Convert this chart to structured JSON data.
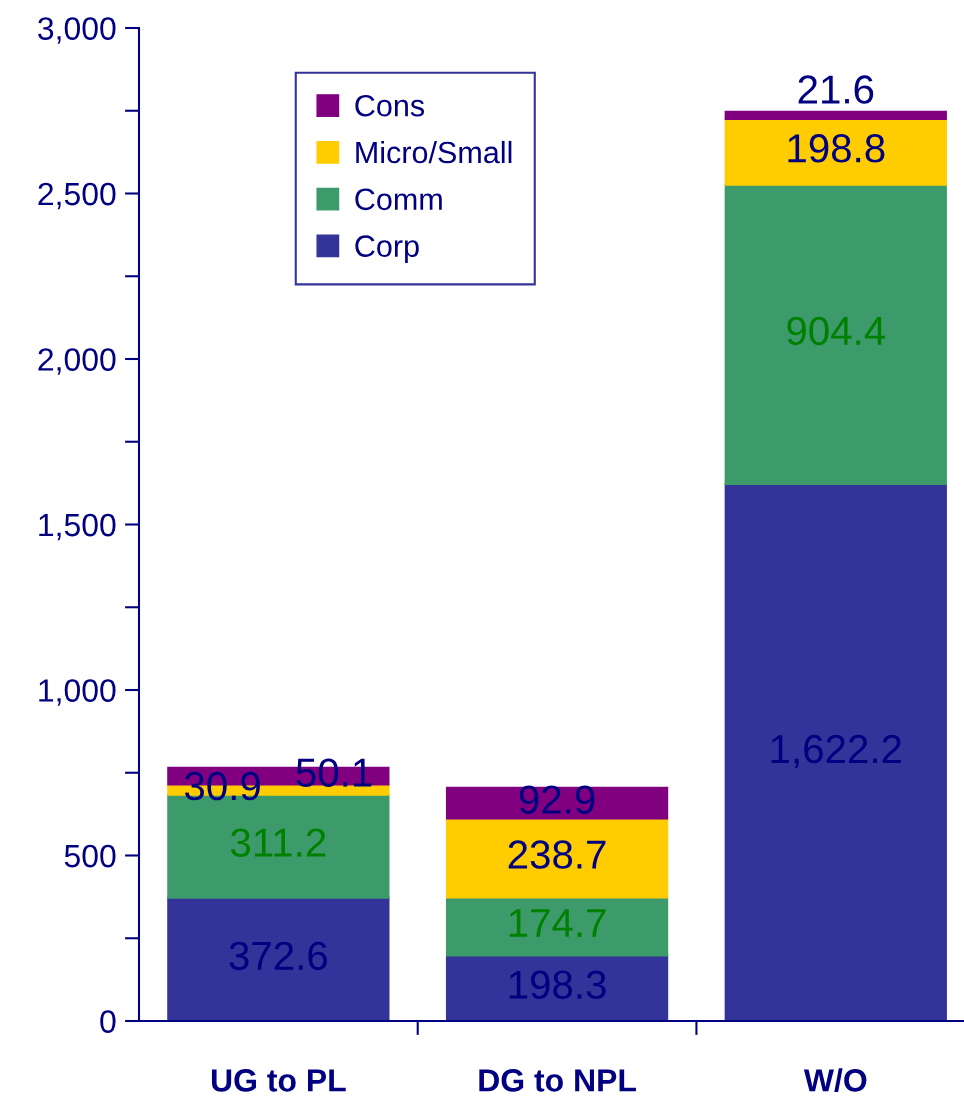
{
  "chart_data": {
    "type": "bar",
    "stacked": true,
    "categories": [
      "UG to PL",
      "DG to NPL",
      "W/O"
    ],
    "series": [
      {
        "name": "Corp",
        "color": "#333399",
        "values": [
          372.6,
          198.3,
          1622.2
        ],
        "value_labels": [
          "372.6",
          "198.3",
          "1,622.2"
        ]
      },
      {
        "name": "Comm",
        "color": "#3d9a6b",
        "values": [
          311.2,
          174.7,
          904.4
        ],
        "value_labels": [
          "311.2",
          "174.7",
          "904.4"
        ]
      },
      {
        "name": "Micro/Small",
        "color": "#ffcc00",
        "values": [
          30.9,
          238.7,
          198.8
        ],
        "value_labels": [
          "30.9",
          "238.7",
          "198.8"
        ]
      },
      {
        "name": "Cons",
        "color": "#800080",
        "values": [
          50.1,
          92.9,
          21.6
        ],
        "value_labels": [
          "50.1",
          "92.9",
          "21.6"
        ]
      }
    ],
    "ylim": [
      0,
      3000
    ],
    "yticks": [
      0,
      {
        "value": 250,
        "label": null
      },
      500,
      {
        "value": 750,
        "label": null
      },
      {
        "value": 1000,
        "label": "1,000"
      },
      {
        "value": 1250,
        "label": null
      },
      {
        "value": 1500,
        "label": "1,500"
      },
      {
        "value": 1750,
        "label": null
      },
      {
        "value": 2000,
        "label": "2,000"
      },
      {
        "value": 2250,
        "label": null
      },
      {
        "value": 2500,
        "label": "2,500"
      },
      {
        "value": 2750,
        "label": null
      },
      {
        "value": 3000,
        "label": "3,000"
      }
    ],
    "legend": "top left",
    "grid": false
  }
}
